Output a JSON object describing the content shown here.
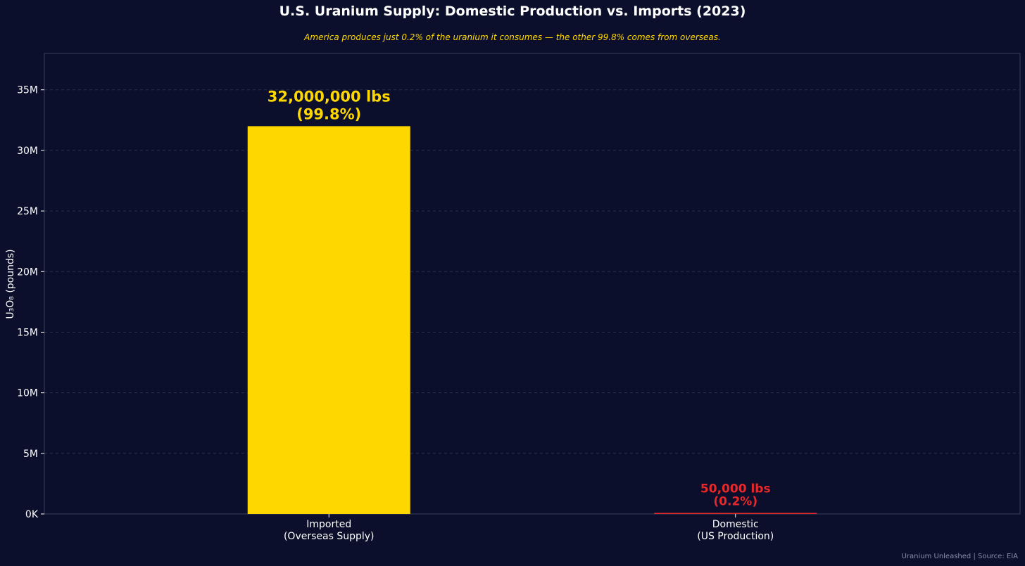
{
  "chart_data": {
    "type": "bar",
    "title": "U.S. Uranium Supply: Domestic Production vs. Imports (2023)",
    "subtitle": "America produces just 0.2% of the uranium it consumes — the other 99.8% comes from overseas.",
    "ylabel": "U₃O₈ (pounds)",
    "xlabel": "",
    "ylim": [
      0,
      38000000
    ],
    "yticks": [
      0,
      5000000,
      10000000,
      15000000,
      20000000,
      25000000,
      30000000,
      35000000
    ],
    "ytick_labels": [
      "0K",
      "5M",
      "10M",
      "15M",
      "20M",
      "25M",
      "30M",
      "35M"
    ],
    "grid": true,
    "categories": [
      [
        "Imported",
        "(Overseas Supply)"
      ],
      [
        "Domestic",
        "(US Production)"
      ]
    ],
    "values": [
      32000000,
      50000
    ],
    "colors": [
      "#ffd700",
      "#e8282b"
    ],
    "data_labels": [
      [
        "32,000,000 lbs",
        "(99.8%)"
      ],
      [
        "50,000 lbs",
        "(0.2%)"
      ]
    ]
  },
  "footer": "Uranium Unleashed  |  Source: EIA"
}
